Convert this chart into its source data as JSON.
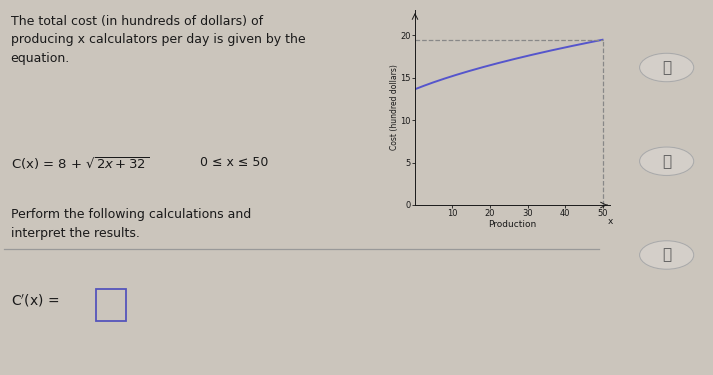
{
  "bg_color": "#cbc5bc",
  "text_color": "#1a1a1a",
  "line_color": "#5555cc",
  "dashed_color": "#888888",
  "paragraph1": "The total cost (in hundreds of dollars) of\nproducing x calculators per day is given by the\nequation.",
  "domain": "0 ≤ x ≤ 50",
  "paragraph2": "Perform the following calculations and\ninterpret the results.",
  "ylabel": "Cost (hundred dollars)",
  "xlabel": "Production",
  "xlim": [
    0,
    52
  ],
  "ylim": [
    0,
    23
  ],
  "xticks": [
    10,
    20,
    30,
    40,
    50
  ],
  "yticks": [
    0,
    5,
    10,
    15,
    20
  ],
  "divider_y": 0.35,
  "icon_bg": "#d4cfc9",
  "icon_edge": "#aaaaaa"
}
